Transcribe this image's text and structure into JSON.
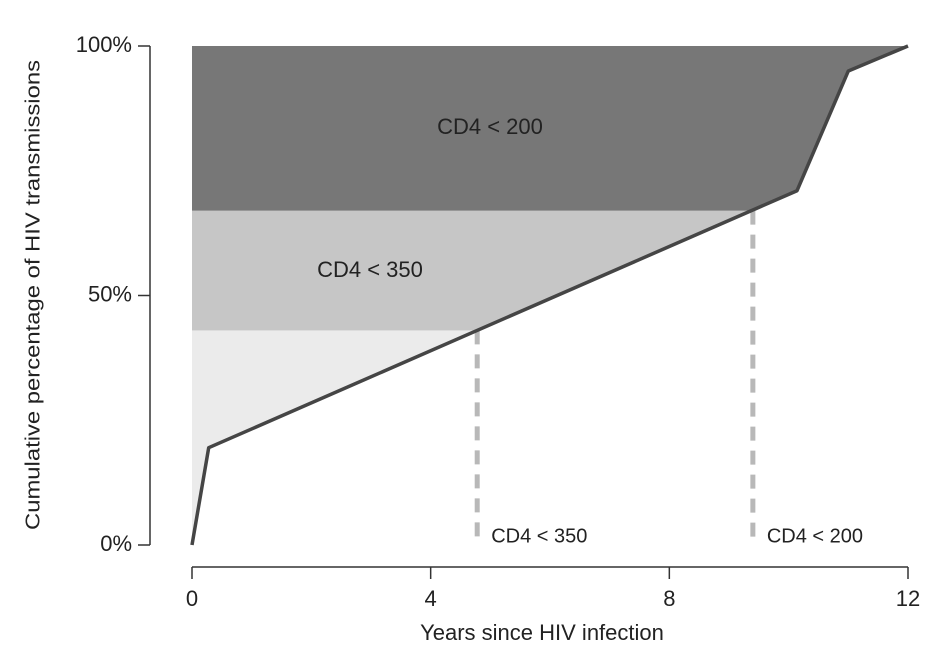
{
  "chart_data": {
    "type": "line",
    "xlabel": "Years since HIV infection",
    "ylabel": "Cumulative percentage of HIV transmissions",
    "x": [
      0,
      0.28,
      10.14,
      11.0,
      12
    ],
    "series": [
      {
        "color": "#454545",
        "values": [
          0,
          19.5,
          71,
          95,
          100
        ]
      }
    ],
    "regions": [
      {
        "label": "CD4 < 350",
        "level": 43,
        "x": 4.78,
        "color": "#c6c6c6"
      },
      {
        "label": "CD4 < 200",
        "level": 67,
        "x": 9.4,
        "color": "#777777"
      }
    ],
    "base_color": "#ebebeb",
    "xlim": [
      0,
      12
    ],
    "xticks": [
      0,
      4,
      8,
      12
    ],
    "ylim": [
      0,
      100
    ],
    "yticks": [
      {
        "value": 0,
        "label": "0%"
      },
      {
        "value": 50,
        "label": "50%"
      },
      {
        "value": 100,
        "label": "100%"
      }
    ]
  }
}
